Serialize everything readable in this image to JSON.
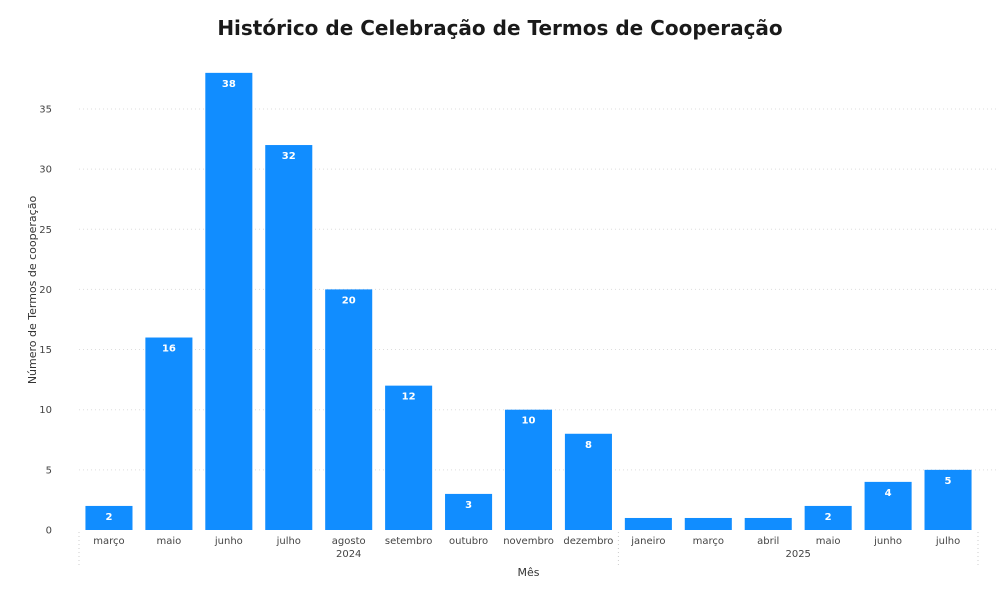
{
  "chart_data": {
    "type": "bar",
    "title": "Histórico de Celebração de Termos de Cooperação",
    "xlabel": "Mês",
    "ylabel": "Número de Termos de cooperação",
    "ylim": [
      0,
      38
    ],
    "yticks": [
      0,
      5,
      10,
      15,
      20,
      25,
      30,
      35
    ],
    "grid": true,
    "bar_color": "#118DFF",
    "groups": [
      {
        "year": "2024",
        "months": [
          "março",
          "maio",
          "junho",
          "julho",
          "agosto",
          "setembro",
          "outubro",
          "novembro",
          "dezembro"
        ]
      },
      {
        "year": "2025",
        "months": [
          "janeiro",
          "março",
          "abril",
          "maio",
          "junho",
          "julho"
        ]
      }
    ],
    "categories": [
      "março",
      "maio",
      "junho",
      "julho",
      "agosto",
      "setembro",
      "outubro",
      "novembro",
      "dezembro",
      "janeiro",
      "março",
      "abril",
      "maio",
      "junho",
      "julho"
    ],
    "values": [
      2,
      16,
      38,
      32,
      20,
      12,
      3,
      10,
      8,
      1,
      1,
      1,
      2,
      4,
      5
    ],
    "data_labels": [
      "2",
      "16",
      "38",
      "32",
      "20",
      "12",
      "3",
      "10",
      "8",
      "",
      "",
      "",
      "2",
      "4",
      "5"
    ]
  }
}
